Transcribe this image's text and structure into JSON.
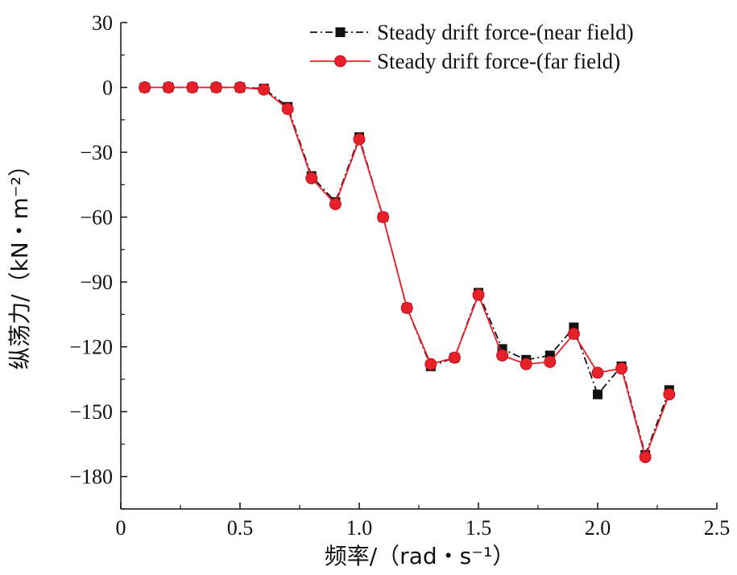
{
  "chart_data": {
    "type": "line",
    "title": "",
    "xlabel": "频率/（rad・s⁻¹）",
    "ylabel": "纵荡力/（kN・m⁻²）",
    "xlim": [
      0,
      2.5
    ],
    "ylim": [
      -195,
      30
    ],
    "xticks": [
      0,
      0.5,
      1.0,
      1.5,
      2.0,
      2.5
    ],
    "xtick_labels": [
      "0",
      "0.5",
      "1.0",
      "1.5",
      "2.0",
      "2.5"
    ],
    "yticks": [
      30,
      0,
      -30,
      -60,
      -90,
      -120,
      -150,
      -180
    ],
    "ytick_labels": [
      "30",
      "0",
      "−30",
      "−60",
      "−90",
      "−120",
      "−150",
      "−180"
    ],
    "grid": false,
    "legend_position": "top-right",
    "x": [
      0.1,
      0.2,
      0.3,
      0.4,
      0.5,
      0.6,
      0.7,
      0.8,
      0.9,
      1.0,
      1.1,
      1.2,
      1.3,
      1.4,
      1.5,
      1.6,
      1.7,
      1.8,
      1.9,
      2.0,
      2.1,
      2.2,
      2.3
    ],
    "series": [
      {
        "name": "Steady drift  force-(near field)",
        "color": "#111111",
        "marker": "square",
        "line_style": "dash-dot",
        "values": [
          0,
          0,
          0,
          0,
          0,
          -0.5,
          -9,
          -41,
          -53,
          -23,
          -60,
          -102,
          -129,
          -125,
          -95,
          -121,
          -126,
          -124,
          -111,
          -142,
          -129,
          -170,
          -140
        ]
      },
      {
        "name": "Steady drift  force-(far field)",
        "color": "#e8202a",
        "marker": "circle",
        "line_style": "solid",
        "values": [
          0,
          0,
          0,
          0,
          0,
          -1,
          -10,
          -42,
          -54,
          -24,
          -60,
          -102,
          -128,
          -125,
          -96,
          -124,
          -128,
          -127,
          -114,
          -132,
          -130,
          -171,
          -142
        ]
      }
    ]
  }
}
